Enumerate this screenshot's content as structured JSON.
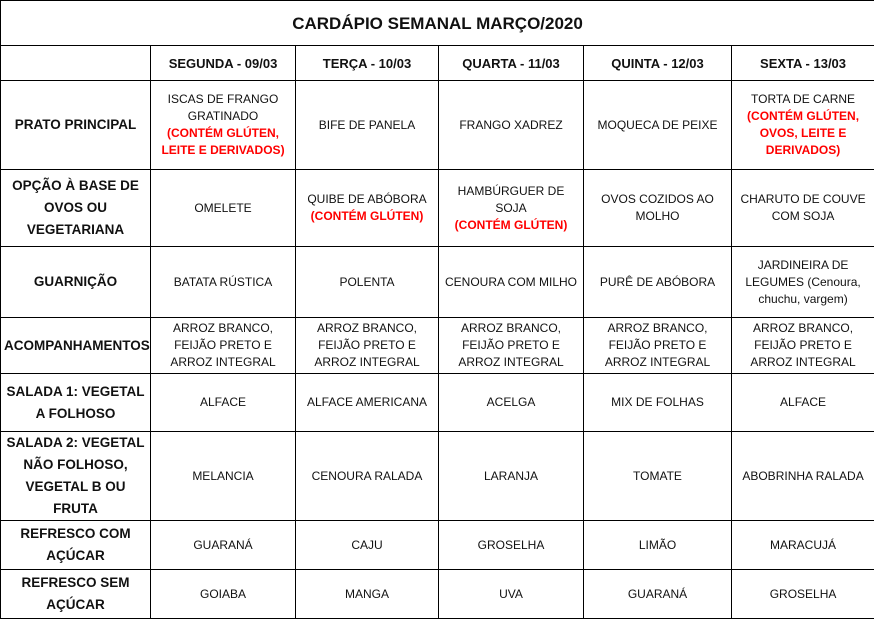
{
  "title": "CARDÁPIO SEMANAL MARÇO/2020",
  "days": [
    "SEGUNDA - 09/03",
    "TERÇA - 10/03",
    "QUARTA - 11/03",
    "QUINTA - 12/03",
    "SEXTA - 13/03"
  ],
  "colors": {
    "warning": "#ff0000",
    "border": "#000000"
  },
  "rows": [
    {
      "label": "PRATO PRINCIPAL",
      "cells": [
        {
          "text": "ISCAS DE FRANGO GRATINADO",
          "warning": "(CONTÉM GLÚTEN, LEITE E DERIVADOS)"
        },
        {
          "text": "BIFE DE PANELA"
        },
        {
          "text": "FRANGO XADREZ"
        },
        {
          "text": "MOQUECA DE PEIXE"
        },
        {
          "text": "TORTA DE CARNE",
          "warning": "(CONTÉM GLÚTEN, OVOS, LEITE E DERIVADOS)"
        }
      ]
    },
    {
      "label": "OPÇÃO À BASE DE OVOS OU VEGETARIANA",
      "cells": [
        {
          "text": "OMELETE"
        },
        {
          "text": "QUIBE DE ABÓBORA",
          "warning": "(CONTÉM GLÚTEN)"
        },
        {
          "text": "HAMBÚRGUER DE SOJA",
          "warning": "(CONTÉM GLÚTEN)"
        },
        {
          "text": "OVOS COZIDOS AO MOLHO"
        },
        {
          "text": "CHARUTO DE COUVE COM SOJA"
        }
      ]
    },
    {
      "label": "GUARNIÇÃO",
      "cells": [
        {
          "text": "BATATA RÚSTICA"
        },
        {
          "text": "POLENTA"
        },
        {
          "text": "CENOURA COM MILHO"
        },
        {
          "text": "PURÊ DE ABÓBORA"
        },
        {
          "text": "JARDINEIRA DE LEGUMES (Cenoura, chuchu, vargem)"
        }
      ]
    },
    {
      "label": "ACOMPANHAMENTOS",
      "cells": [
        {
          "text": "ARROZ BRANCO, FEIJÃO PRETO E ARROZ INTEGRAL"
        },
        {
          "text": "ARROZ BRANCO, FEIJÃO PRETO E ARROZ INTEGRAL"
        },
        {
          "text": "ARROZ BRANCO, FEIJÃO PRETO E ARROZ INTEGRAL"
        },
        {
          "text": "ARROZ BRANCO, FEIJÃO PRETO E ARROZ INTEGRAL"
        },
        {
          "text": "ARROZ BRANCO, FEIJÃO PRETO E ARROZ INTEGRAL"
        }
      ]
    },
    {
      "label": "SALADA 1: VEGETAL A FOLHOSO",
      "cells": [
        {
          "text": "ALFACE"
        },
        {
          "text": "ALFACE AMERICANA"
        },
        {
          "text": "ACELGA"
        },
        {
          "text": "MIX DE FOLHAS"
        },
        {
          "text": "ALFACE"
        }
      ]
    },
    {
      "label": "SALADA 2: VEGETAL NÃO FOLHOSO, VEGETAL B OU FRUTA",
      "cells": [
        {
          "text": "MELANCIA"
        },
        {
          "text": "CENOURA RALADA"
        },
        {
          "text": "LARANJA"
        },
        {
          "text": "TOMATE"
        },
        {
          "text": "ABOBRINHA RALADA"
        }
      ]
    },
    {
      "label": "REFRESCO COM AÇÚCAR",
      "cells": [
        {
          "text": "GUARANÁ"
        },
        {
          "text": "CAJU"
        },
        {
          "text": "GROSELHA"
        },
        {
          "text": "LIMÃO"
        },
        {
          "text": "MARACUJÁ"
        }
      ]
    },
    {
      "label": "REFRESCO SEM AÇÚCAR",
      "cells": [
        {
          "text": "GOIABA"
        },
        {
          "text": "MANGA"
        },
        {
          "text": "UVA"
        },
        {
          "text": "GUARANÁ"
        },
        {
          "text": "GROSELHA"
        }
      ]
    }
  ]
}
